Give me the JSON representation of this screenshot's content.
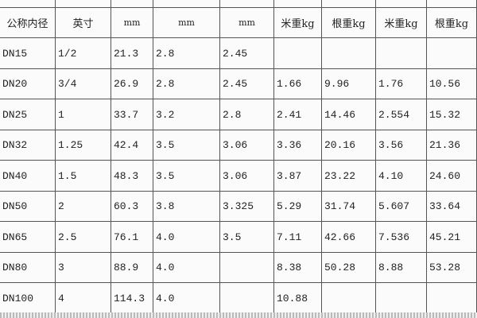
{
  "table": {
    "header": [
      "公称内径",
      "英寸",
      "mm",
      "mm",
      "mm",
      "米重kg",
      "根重kg",
      "米重kg",
      "根重kg"
    ],
    "rows": [
      [
        "DN15",
        "1/2",
        "21.3",
        "2.8",
        "2.45",
        null,
        null,
        null,
        null
      ],
      [
        "DN20",
        "3/4",
        "26.9",
        "2.8",
        "2.45",
        "1.66",
        "9.96",
        "1.76",
        "10.56"
      ],
      [
        "DN25",
        "1",
        "33.7",
        "3.2",
        "2.8",
        "2.41",
        "14.46",
        "2.554",
        "15.32"
      ],
      [
        "DN32",
        "1.25",
        "42.4",
        "3.5",
        "3.06",
        "3.36",
        "20.16",
        "3.56",
        "21.36"
      ],
      [
        "DN40",
        "1.5",
        "48.3",
        "3.5",
        "3.06",
        "3.87",
        "23.22",
        "4.10",
        "24.60"
      ],
      [
        "DN50",
        "2",
        "60.3",
        "3.8",
        "3.325",
        "5.29",
        "31.74",
        "5.607",
        "33.64"
      ],
      [
        "DN65",
        "2.5",
        "76.1",
        "4.0",
        "3.5",
        "7.11",
        "42.66",
        "7.536",
        "45.21"
      ],
      [
        "DN80",
        "3",
        "88.9",
        "4.0",
        null,
        "8.38",
        "50.28",
        "8.88",
        "53.28"
      ],
      [
        "DN100",
        "4",
        "114.3",
        "4.0",
        null,
        "10.88",
        null,
        null,
        null
      ]
    ]
  }
}
